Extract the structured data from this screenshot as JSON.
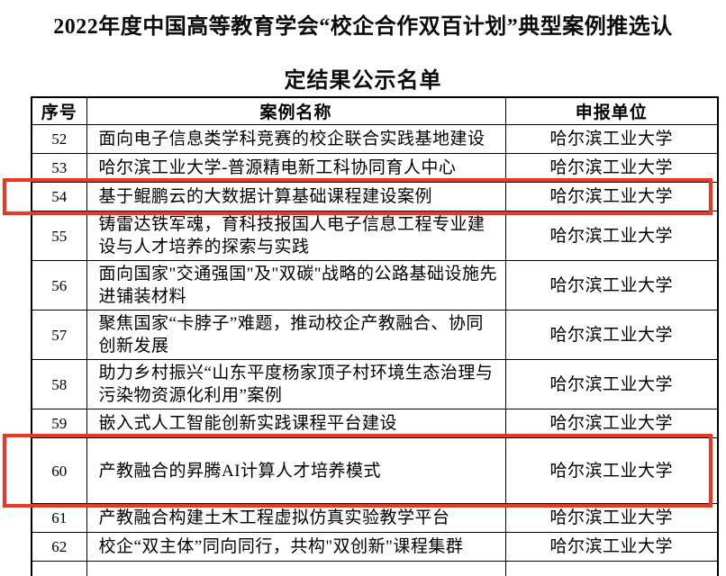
{
  "title": {
    "line1": "2022年度中国高等教育学会“校企合作双百计划”典型案例推选认",
    "line2": "定结果公示名单"
  },
  "highlight_color": "#f5341d",
  "table": {
    "columns": [
      "序号",
      "案例名称",
      "申报单位"
    ],
    "rows": [
      {
        "seq": "52",
        "name": "面向电子信息类学科竞赛的校企联合实践基地建设",
        "unit": "哈尔滨工业大学",
        "highlighted": false
      },
      {
        "seq": "53",
        "name": "哈尔滨工业大学-普源精电新工科协同育人中心",
        "unit": "哈尔滨工业大学",
        "highlighted": false
      },
      {
        "seq": "54",
        "name": "基于鲲鹏云的大数据计算基础课程建设案例",
        "unit": "哈尔滨工业大学",
        "highlighted": true
      },
      {
        "seq": "55",
        "name": "铸雷达铁军魂，育科技报国人电子信息工程专业建设与人才培养的探索与实践",
        "unit": "哈尔滨工业大学",
        "highlighted": false
      },
      {
        "seq": "56",
        "name": "面向国家\"交通强国\"及\"双碳\"战略的公路基础设施先进铺装材料",
        "unit": "哈尔滨工业大学",
        "highlighted": false
      },
      {
        "seq": "57",
        "name": "聚焦国家“卡脖子”难题，推动校企产教融合、协同创新发展",
        "unit": "哈尔滨工业大学",
        "highlighted": false
      },
      {
        "seq": "58",
        "name": "助力乡村振兴“山东平度杨家顶子村环境生态治理与污染物资源化利用”案例",
        "unit": "哈尔滨工业大学",
        "highlighted": false
      },
      {
        "seq": "59",
        "name": "嵌入式人工智能创新实践课程平台建设",
        "unit": "哈尔滨工业大学",
        "highlighted": false
      },
      {
        "seq": "60",
        "name": "产教融合的昇腾AI计算人才培养模式",
        "unit": "哈尔滨工业大学",
        "highlighted": true
      },
      {
        "seq": "61",
        "name": "产教融合构建土木工程虚拟仿真实验教学平台",
        "unit": "哈尔滨工业大学",
        "highlighted": false
      },
      {
        "seq": "62",
        "name": "校企“双主体”同向同行，共构\"双创新\"课程集群",
        "unit": "哈尔滨工业大学",
        "highlighted": false
      }
    ]
  }
}
